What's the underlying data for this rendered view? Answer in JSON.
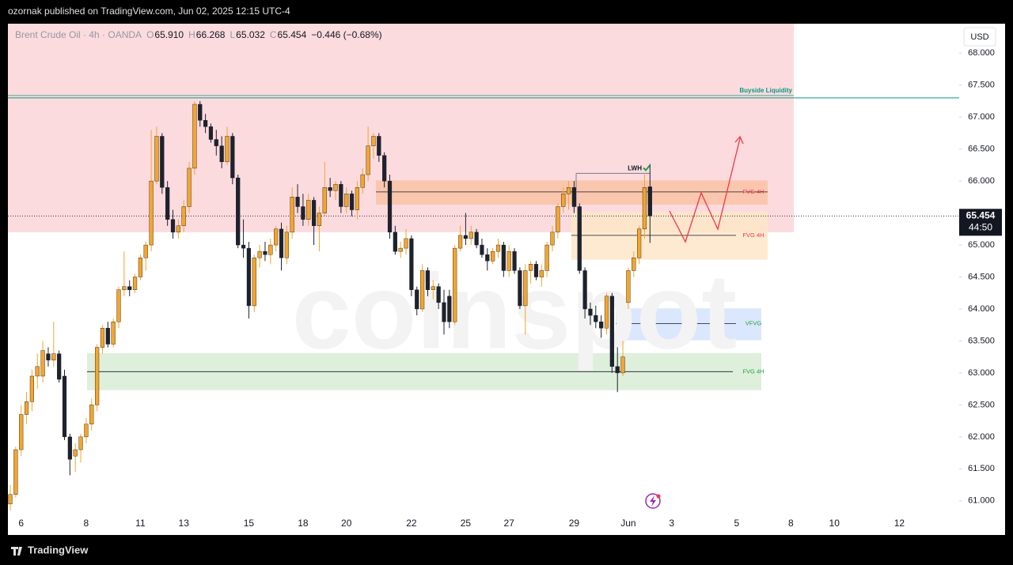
{
  "header": "ozornak published on TradingView.com, Jun 02, 2025 12:15 UTC-4",
  "footer": "TradingView",
  "chart_data": {
    "type": "candlestick",
    "legend": {
      "symbol": "Brent Crude Oil · 4h · OANDA",
      "items": [
        {
          "key": "O",
          "value": "65.910"
        },
        {
          "key": "H",
          "value": "66.268"
        },
        {
          "key": "L",
          "value": "65.032"
        },
        {
          "key": "C",
          "value": "65.454"
        }
      ],
      "change": "−0.446 (−0.68%)"
    },
    "currency": "USD",
    "watermark": "coinspot",
    "up_color": "#f5a52a",
    "down_color": "#1e222d",
    "grid": false,
    "ylim": [
      60.8,
      68.46
    ],
    "yticks": [
      {
        "value": 61,
        "label": "61.000"
      },
      {
        "value": 61.5,
        "label": "61.500"
      },
      {
        "value": 62,
        "label": "62.000"
      },
      {
        "value": 62.5,
        "label": "62.500"
      },
      {
        "value": 63,
        "label": "63.000"
      },
      {
        "value": 63.5,
        "label": "63.500"
      },
      {
        "value": 64,
        "label": "64.000"
      },
      {
        "value": 64.5,
        "label": "64.500"
      },
      {
        "value": 65,
        "label": "65.000"
      },
      {
        "value": 65.5,
        "label": "65.500"
      },
      {
        "value": 66,
        "label": "66.000"
      },
      {
        "value": 66.5,
        "label": "66.500"
      },
      {
        "value": 67,
        "label": "67.000"
      },
      {
        "value": 67.5,
        "label": "67.500"
      },
      {
        "value": 68,
        "label": "68.000"
      }
    ],
    "last_price": 65.454,
    "countdown": "44:50",
    "categories": [
      null,
      null,
      "6",
      null,
      null,
      null,
      null,
      null,
      null,
      null,
      null,
      null,
      null,
      null,
      "8",
      null,
      null,
      null,
      null,
      null,
      null,
      null,
      null,
      null,
      "11",
      null,
      null,
      null,
      null,
      null,
      null,
      null,
      "13",
      null,
      null,
      null,
      null,
      null,
      null,
      null,
      null,
      null,
      null,
      null,
      "15",
      null,
      null,
      null,
      null,
      null,
      null,
      null,
      null,
      null,
      "18",
      null,
      null,
      null,
      null,
      null,
      null,
      null,
      "20",
      null,
      null,
      null,
      null,
      null,
      null,
      null,
      null,
      null,
      null,
      null,
      "22",
      null,
      null,
      null,
      null,
      null,
      null,
      null,
      null,
      null,
      "25",
      null,
      null,
      null,
      null,
      null,
      null,
      null,
      "27",
      null,
      null,
      null,
      null,
      null,
      null,
      null,
      null,
      null,
      null,
      null,
      "29",
      null,
      null,
      null,
      null,
      null,
      null,
      null,
      null,
      null,
      "Jun",
      null,
      null,
      null,
      null,
      null,
      null,
      null,
      "3",
      null,
      null,
      null,
      null,
      null,
      null,
      null,
      null,
      null,
      null,
      null,
      "5",
      null,
      null,
      null,
      null,
      null,
      null,
      null,
      null,
      null,
      "8",
      null,
      null,
      null,
      null,
      null,
      null,
      null,
      "10",
      null,
      null,
      null,
      null,
      null,
      null,
      null,
      null,
      null,
      null,
      null,
      "12"
    ],
    "open": [
      60.95,
      61.1,
      61.8,
      62.35,
      62.55,
      62.95,
      62.95,
      63.3,
      63.2,
      63.3,
      62.95,
      62.0,
      61.7,
      61.8,
      62.0,
      62.2,
      62.5,
      63.4,
      63.7,
      63.45,
      63.8,
      64.3,
      64.35,
      64.3,
      64.5,
      64.8,
      65.0,
      66.0,
      66.7,
      65.9,
      65.4,
      65.2,
      65.3,
      65.6,
      66.2,
      67.2,
      66.95,
      66.85,
      66.65,
      66.55,
      66.3,
      66.7,
      66.05,
      65.0,
      64.95,
      64.05,
      64.8,
      64.9,
      64.85,
      65.0,
      65.25,
      64.8,
      65.2,
      65.75,
      65.6,
      65.4,
      65.7,
      65.3,
      65.5,
      65.9,
      65.85,
      65.95,
      65.6,
      65.8,
      65.55,
      65.9,
      66.1,
      66.55,
      66.7,
      66.4,
      66.0,
      65.2,
      64.9,
      64.95,
      65.1,
      64.3,
      64.0,
      64.6,
      64.3,
      64.35,
      64.1,
      64.2,
      63.8,
      64.95,
      65.15,
      65.1,
      65.2,
      65.0,
      64.85,
      64.75,
      64.9,
      65.0,
      64.6,
      64.9,
      64.6,
      64.05,
      64.6,
      64.7,
      64.5,
      64.6,
      65.0,
      65.2,
      65.6,
      65.8,
      65.9,
      65.6,
      64.6,
      64.0,
      63.9,
      63.8,
      63.7,
      64.2,
      63.1,
      63.0,
      64.1,
      64.6,
      64.8,
      65.25,
      65.91,
      null,
      null,
      null,
      null,
      null,
      null,
      null,
      null,
      null,
      null,
      null,
      null,
      null,
      null,
      null,
      null,
      null,
      null,
      null,
      null,
      null,
      null,
      null,
      null,
      null,
      null,
      null,
      null,
      null,
      null,
      null,
      null,
      null,
      null,
      null,
      null,
      null,
      null,
      null,
      null,
      null,
      null,
      null,
      null,
      null,
      null
    ],
    "high": [
      61.25,
      61.85,
      62.5,
      62.7,
      63.05,
      63.3,
      63.5,
      63.4,
      63.8,
      63.35,
      63.05,
      62.05,
      61.9,
      62.05,
      62.3,
      62.6,
      63.45,
      63.75,
      63.8,
      63.85,
      64.35,
      64.9,
      64.45,
      64.55,
      64.85,
      65.05,
      66.8,
      66.85,
      66.75,
      66.0,
      65.55,
      65.4,
      65.7,
      66.3,
      67.25,
      67.25,
      67.05,
      66.9,
      66.8,
      66.7,
      66.85,
      66.75,
      66.1,
      65.4,
      65.05,
      64.85,
      65.0,
      65.05,
      65.1,
      65.3,
      65.35,
      65.3,
      65.9,
      65.95,
      65.8,
      65.8,
      65.75,
      65.6,
      66.3,
      66.05,
      66.0,
      66.0,
      65.9,
      65.85,
      66.0,
      66.2,
      66.85,
      66.75,
      66.75,
      66.45,
      66.1,
      65.3,
      65.05,
      65.25,
      65.15,
      64.35,
      64.7,
      64.65,
      64.45,
      64.4,
      64.3,
      64.3,
      65.0,
      65.3,
      65.5,
      65.3,
      65.25,
      65.1,
      64.95,
      64.95,
      65.1,
      65.05,
      65.0,
      64.95,
      64.65,
      64.7,
      64.75,
      64.75,
      64.7,
      65.05,
      65.3,
      65.65,
      65.9,
      66.0,
      66.0,
      65.65,
      64.65,
      64.1,
      64.05,
      63.9,
      64.25,
      64.25,
      63.4,
      63.5,
      64.65,
      64.9,
      65.3,
      66.1,
      66.268,
      null,
      null,
      null,
      null,
      null,
      null,
      null,
      null,
      null,
      null,
      null,
      null,
      null,
      null,
      null,
      null,
      null,
      null,
      null,
      null,
      null,
      null,
      null,
      null,
      null,
      null,
      null,
      null,
      null,
      null,
      null,
      null,
      null,
      null,
      null,
      null,
      null,
      null,
      null,
      null,
      null,
      null,
      null,
      null,
      null,
      null
    ],
    "low": [
      60.85,
      61.05,
      61.7,
      62.2,
      62.4,
      62.75,
      62.85,
      63.1,
      63.1,
      62.85,
      61.95,
      61.4,
      61.45,
      61.6,
      61.9,
      62.1,
      62.4,
      63.3,
      63.4,
      63.4,
      63.7,
      64.2,
      64.2,
      64.25,
      64.45,
      64.6,
      64.9,
      65.95,
      65.8,
      65.3,
      65.1,
      65.1,
      65.2,
      65.5,
      66.1,
      66.85,
      66.75,
      66.6,
      66.4,
      66.2,
      66.25,
      65.95,
      64.95,
      64.8,
      63.85,
      63.95,
      64.65,
      64.75,
      64.7,
      64.9,
      64.6,
      64.7,
      65.1,
      65.5,
      65.3,
      65.3,
      65.0,
      64.9,
      65.45,
      65.75,
      65.7,
      65.5,
      65.5,
      65.45,
      65.4,
      65.8,
      66.0,
      66.35,
      66.3,
      65.9,
      65.1,
      64.85,
      64.8,
      64.85,
      64.2,
      63.9,
      63.95,
      64.2,
      64.15,
      64.0,
      63.6,
      63.7,
      63.75,
      64.9,
      65.0,
      65.0,
      64.95,
      64.8,
      64.6,
      64.7,
      64.8,
      64.5,
      64.5,
      64.55,
      64.0,
      63.6,
      64.4,
      64.45,
      64.35,
      64.5,
      64.9,
      65.1,
      65.5,
      65.55,
      65.5,
      64.55,
      63.85,
      63.75,
      63.7,
      63.55,
      63.6,
      63.0,
      62.7,
      62.95,
      64.0,
      64.5,
      64.7,
      65.1,
      65.032,
      null,
      null,
      null,
      null,
      null,
      null,
      null,
      null,
      null,
      null,
      null,
      null,
      null,
      null,
      null,
      null,
      null,
      null,
      null,
      null,
      null,
      null,
      null,
      null,
      null,
      null,
      null,
      null,
      null,
      null,
      null,
      null,
      null,
      null,
      null,
      null,
      null,
      null,
      null,
      null,
      null,
      null,
      null,
      null,
      null,
      null
    ],
    "close": [
      61.1,
      61.8,
      62.35,
      62.55,
      62.95,
      63.1,
      63.35,
      63.2,
      63.3,
      62.9,
      62.0,
      61.65,
      61.8,
      62.0,
      62.2,
      62.5,
      63.4,
      63.7,
      63.45,
      63.8,
      64.3,
      64.35,
      64.3,
      64.5,
      64.8,
      65.0,
      66.0,
      66.7,
      65.9,
      65.4,
      65.2,
      65.3,
      65.6,
      66.2,
      67.2,
      66.95,
      66.85,
      66.65,
      66.55,
      66.3,
      66.7,
      66.05,
      65.0,
      64.95,
      64.05,
      64.8,
      64.9,
      64.85,
      65.0,
      65.25,
      64.8,
      65.2,
      65.75,
      65.6,
      65.4,
      65.7,
      65.3,
      65.5,
      65.9,
      65.85,
      65.95,
      65.6,
      65.8,
      65.55,
      65.9,
      66.1,
      66.55,
      66.7,
      66.4,
      66.0,
      65.2,
      64.9,
      64.95,
      65.1,
      64.3,
      64.0,
      64.6,
      64.3,
      64.35,
      64.1,
      63.8,
      63.8,
      64.95,
      65.15,
      65.1,
      65.2,
      65.0,
      64.85,
      64.75,
      64.9,
      65.0,
      64.6,
      64.9,
      64.6,
      64.05,
      64.6,
      64.7,
      64.5,
      64.6,
      65.0,
      65.2,
      65.6,
      65.8,
      65.9,
      65.6,
      64.6,
      64.0,
      63.9,
      63.8,
      63.7,
      64.2,
      63.1,
      63.0,
      63.25,
      64.6,
      64.8,
      65.25,
      65.9,
      65.454,
      null,
      null,
      null,
      null,
      null,
      null,
      null,
      null,
      null,
      null,
      null,
      null,
      null,
      null,
      null,
      null,
      null,
      null,
      null,
      null,
      null,
      null,
      null,
      null,
      null,
      null,
      null,
      null,
      null,
      null,
      null,
      null,
      null,
      null,
      null,
      null,
      null,
      null,
      null,
      null,
      null,
      null,
      null,
      null,
      null,
      null
    ],
    "zones": [
      {
        "top": 68.46,
        "bottom": 65.2,
        "color": "#fbd5d9"
      },
      {
        "label": "FVG 4H",
        "top": 66.01,
        "bottom": 65.63,
        "mid": 65.83,
        "color": "#f9c3a6",
        "label_color": "#f23645"
      },
      {
        "label": "FVG 4H",
        "top": 65.52,
        "bottom": 64.77,
        "mid": 65.15,
        "color": "#fde6c8",
        "label_color": "#f23645"
      },
      {
        "label": "VFVG",
        "top": 64.01,
        "bottom": 63.51,
        "mid": 63.77,
        "color": "#d5e3fb",
        "label_color": "#22a046"
      },
      {
        "label": "FVG 4H",
        "top": 63.31,
        "bottom": 62.73,
        "mid": 63.02,
        "color": "#d8ecd6",
        "label_color": "#22a046"
      }
    ],
    "lines": [
      {
        "label": "Buyside Liquidity",
        "value": 67.3,
        "color": "#089981"
      },
      {
        "label": "LWH",
        "value": 66.12,
        "color": "#787b86"
      }
    ]
  }
}
